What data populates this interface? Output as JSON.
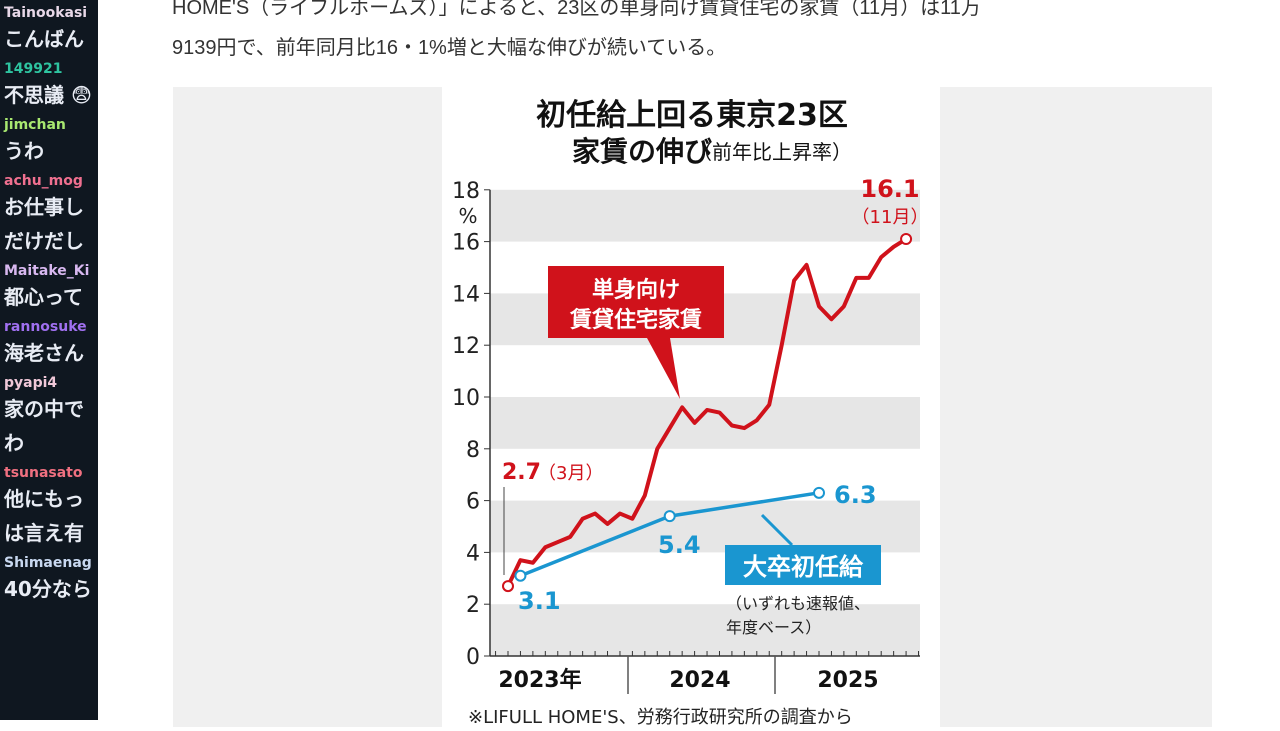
{
  "chat": [
    {
      "user": "Tainookasi",
      "color": "#e8d8e8",
      "lines": [
        "こんばん"
      ]
    },
    {
      "user": "149921",
      "color": "#2ec4a0",
      "lines": [
        "不思議 😨"
      ]
    },
    {
      "user": "jimchan",
      "color": "#a8e870",
      "lines": [
        "うわ"
      ]
    },
    {
      "user": "achu_mog",
      "color": "#f07090",
      "lines": [
        "お仕事し",
        "だけだし"
      ]
    },
    {
      "user": "Maitake_Ki",
      "color": "#d8b8f0",
      "lines": [
        "都心って"
      ]
    },
    {
      "user": "rannosuke",
      "color": "#a070f0",
      "lines": [
        "海老さん"
      ]
    },
    {
      "user": "pyapi4",
      "color": "#f0c8d8",
      "lines": [
        "家の中で",
        "わ"
      ]
    },
    {
      "user": "tsunasato",
      "color": "#f07080",
      "lines": [
        "他にもっ",
        "は言え有"
      ]
    },
    {
      "user": "Shimaenag",
      "color": "#c8d8f0",
      "lines": [
        "40分なら"
      ]
    }
  ],
  "article": {
    "line1": "HOME'S（ライフルホームズ）」によると、23区の単身向け賃貸住宅の家賃（11月）は11万",
    "line2": "9139円で、前年同月比16・1%増と大幅な伸びが続いている。"
  },
  "chart_data": {
    "type": "line",
    "title": "初任給上回る東京23区",
    "subtitle_main": "家賃の伸び",
    "subtitle_note": "（前年比上昇率）",
    "ylabel": "%",
    "ylim": [
      0,
      18
    ],
    "yticks": [
      "0",
      "2",
      "4",
      "6",
      "8",
      "10",
      "12",
      "14",
      "16",
      "18"
    ],
    "xtick_labels": [
      "2023年",
      "2024",
      "2025"
    ],
    "x_start": "2023-03",
    "series": [
      {
        "name": "単身向け賃貸住宅家賃",
        "color": "#d0121b",
        "month_index": [
          0,
          1,
          2,
          3,
          4,
          5,
          6,
          7,
          8,
          9,
          10,
          11,
          12,
          13,
          14,
          15,
          16,
          17,
          18,
          19,
          20,
          21,
          22,
          23,
          24,
          25,
          26,
          27,
          28,
          29,
          30,
          31,
          32
        ],
        "values": [
          2.7,
          3.7,
          3.6,
          4.2,
          4.4,
          4.6,
          5.3,
          5.5,
          5.1,
          5.5,
          5.3,
          6.2,
          8.0,
          8.8,
          9.6,
          9.0,
          9.5,
          9.4,
          8.9,
          8.8,
          9.1,
          9.7,
          12.0,
          14.5,
          15.1,
          13.5,
          13.0,
          13.5,
          14.6,
          14.6,
          15.4,
          15.8,
          16.1
        ]
      },
      {
        "name": "大卒初任給",
        "color": "#1a96d0",
        "month_index": [
          1,
          13,
          25
        ],
        "values": [
          3.1,
          5.4,
          6.3
        ]
      }
    ],
    "labels": {
      "start": "2.7",
      "start_note": "（3月）",
      "end": "16.1",
      "end_note": "（11月）",
      "blue1": "3.1",
      "blue2": "5.4",
      "blue3": "6.3",
      "red_box1": "単身向け",
      "red_box2": "賃貸住宅家賃",
      "blue_box": "大卒初任給",
      "note1": "（いずれも速報値、",
      "note2": "年度ベース）"
    },
    "source": "※LIFULL HOME'S、労務行政研究所の調査から"
  }
}
